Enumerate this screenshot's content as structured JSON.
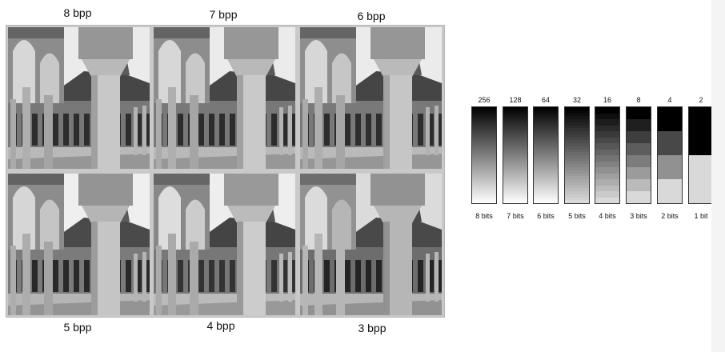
{
  "panels": [
    {
      "label": "8 bpp",
      "levels": 256
    },
    {
      "label": "7 bpp",
      "levels": 128
    },
    {
      "label": "6 bpp",
      "levels": 64
    },
    {
      "label": "5 bpp",
      "levels": 32
    },
    {
      "label": "4 bpp",
      "levels": 16
    },
    {
      "label": "3 bpp",
      "levels": 8
    }
  ],
  "strips": [
    {
      "count": "256",
      "bits": "8 bits",
      "levels": 256
    },
    {
      "count": "128",
      "bits": "7 bits",
      "levels": 128
    },
    {
      "count": "64",
      "bits": "6 bits",
      "levels": 64
    },
    {
      "count": "32",
      "bits": "5 bits",
      "levels": 32
    },
    {
      "count": "16",
      "bits": "4 bits",
      "levels": 16
    },
    {
      "count": "8",
      "bits": "3 bits",
      "levels": 8
    },
    {
      "count": "4",
      "bits": "2 bits",
      "levels": 4
    },
    {
      "count": "2",
      "bits": "1 bit",
      "levels": 2
    }
  ]
}
